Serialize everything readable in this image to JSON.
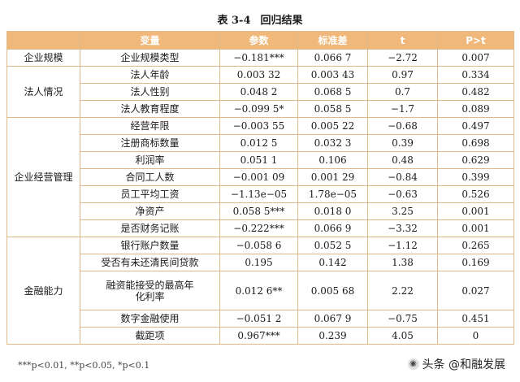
{
  "title": {
    "label": "表 3-4",
    "text": "回归结果"
  },
  "headers": [
    "",
    "变量",
    "参数",
    "标准差",
    "t",
    "P>t"
  ],
  "groups": [
    {
      "name": "企业规模",
      "rows": [
        {
          "var": "企业规模类型",
          "coef": "−0.181***",
          "se": "0.066 7",
          "t": "−2.72",
          "p": "0.007"
        }
      ]
    },
    {
      "name": "法人情况",
      "rows": [
        {
          "var": "法人年龄",
          "coef": "0.003 32",
          "se": "0.003 43",
          "t": "0.97",
          "p": "0.334"
        },
        {
          "var": "法人性别",
          "coef": "0.048 2",
          "se": "0.068 5",
          "t": "0.7",
          "p": "0.482"
        },
        {
          "var": "法人教育程度",
          "coef": "−0.099 5*",
          "se": "0.058 5",
          "t": "−1.7",
          "p": "0.089"
        }
      ]
    },
    {
      "name": "企业经营管理",
      "rows": [
        {
          "var": "经营年限",
          "coef": "−0.003 55",
          "se": "0.005 22",
          "t": "−0.68",
          "p": "0.497"
        },
        {
          "var": "注册商标数量",
          "coef": "0.012 5",
          "se": "0.032 3",
          "t": "0.39",
          "p": "0.698"
        },
        {
          "var": "利润率",
          "coef": "0.051 1",
          "se": "0.106",
          "t": "0.48",
          "p": "0.629"
        },
        {
          "var": "合同工人数",
          "coef": "−0.001 09",
          "se": "0.001 29",
          "t": "−0.84",
          "p": "0.399"
        },
        {
          "var": "员工平均工资",
          "coef": "−1.13e−05",
          "se": "1.78e−05",
          "t": "−0.63",
          "p": "0.526"
        },
        {
          "var": "净资产",
          "coef": "0.058 5***",
          "se": "0.018 0",
          "t": "3.25",
          "p": "0.001"
        },
        {
          "var": "是否财务记账",
          "coef": "−0.222***",
          "se": "0.066 9",
          "t": "−3.32",
          "p": "0.001"
        }
      ]
    },
    {
      "name": "金融能力",
      "rows": [
        {
          "var": "银行账户数量",
          "coef": "−0.058 6",
          "se": "0.052 5",
          "t": "−1.12",
          "p": "0.265"
        },
        {
          "var": "受否有未还清民间贷款",
          "coef": "0.195",
          "se": "0.142",
          "t": "1.38",
          "p": "0.169"
        },
        {
          "var": "融资能接受的最高年化利率",
          "coef": "0.012 6**",
          "se": "0.005 68",
          "t": "2.22",
          "p": "0.027"
        },
        {
          "var": "数字金融使用",
          "coef": "−0.051 2",
          "se": "0.067 9",
          "t": "−0.75",
          "p": "0.451"
        },
        {
          "var": "截距项",
          "coef": "0.967***",
          "se": "0.239",
          "t": "4.05",
          "p": "0"
        }
      ]
    }
  ],
  "footnote": "***p<0.01, **p<0.05, *p<0.1",
  "watermark": "头条 @和融发展"
}
